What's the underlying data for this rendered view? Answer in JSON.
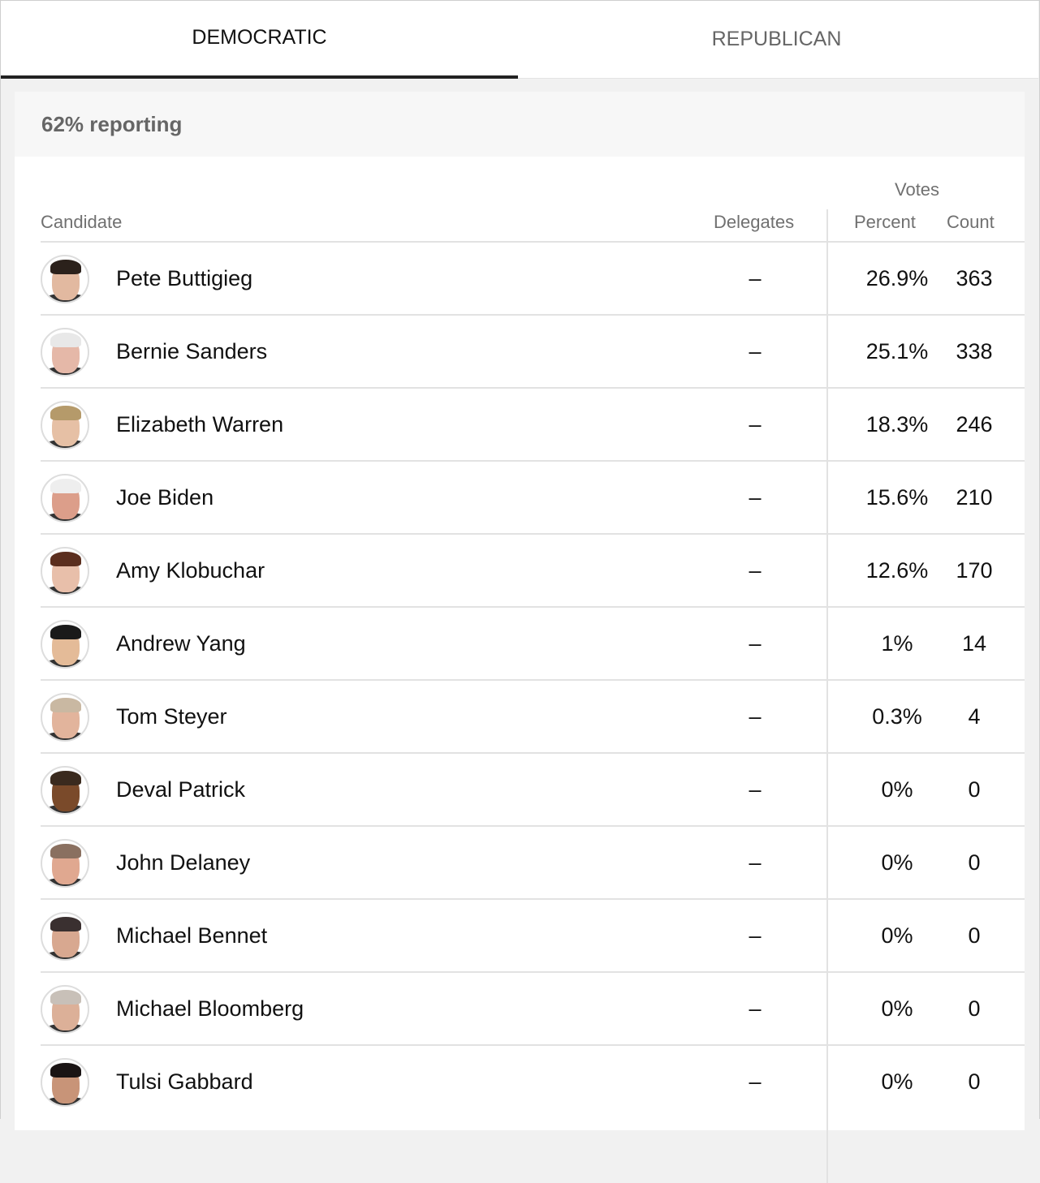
{
  "tabs": [
    {
      "label": "DEMOCRATIC",
      "active": true
    },
    {
      "label": "REPUBLICAN",
      "active": false
    }
  ],
  "reporting": "62% reporting",
  "headers": {
    "votes": "Votes",
    "candidate": "Candidate",
    "delegates": "Delegates",
    "percent": "Percent",
    "count": "Count"
  },
  "rows": [
    {
      "name": "Pete Buttigieg",
      "delegates": "–",
      "percent": "26.9%",
      "count": "363",
      "skin": "#e2b9a0",
      "hair": "#2b211b"
    },
    {
      "name": "Bernie Sanders",
      "delegates": "–",
      "percent": "25.1%",
      "count": "338",
      "skin": "#e5b8a8",
      "hair": "#e8e8e8"
    },
    {
      "name": "Elizabeth Warren",
      "delegates": "–",
      "percent": "18.3%",
      "count": "246",
      "skin": "#e6c0a5",
      "hair": "#b59a6a"
    },
    {
      "name": "Joe Biden",
      "delegates": "–",
      "percent": "15.6%",
      "count": "210",
      "skin": "#dc9e8a",
      "hair": "#eeeeee"
    },
    {
      "name": "Amy Klobuchar",
      "delegates": "–",
      "percent": "12.6%",
      "count": "170",
      "skin": "#e8bfaa",
      "hair": "#5b2e1e"
    },
    {
      "name": "Andrew Yang",
      "delegates": "–",
      "percent": "1%",
      "count": "14",
      "skin": "#e4bb98",
      "hair": "#1a1a1a"
    },
    {
      "name": "Tom Steyer",
      "delegates": "–",
      "percent": "0.3%",
      "count": "4",
      "skin": "#e2b49c",
      "hair": "#c9b8a2"
    },
    {
      "name": "Deval Patrick",
      "delegates": "–",
      "percent": "0%",
      "count": "0",
      "skin": "#7a4a2a",
      "hair": "#3a2a1e"
    },
    {
      "name": "John Delaney",
      "delegates": "–",
      "percent": "0%",
      "count": "0",
      "skin": "#e0a890",
      "hair": "#8a7060"
    },
    {
      "name": "Michael Bennet",
      "delegates": "–",
      "percent": "0%",
      "count": "0",
      "skin": "#d8a890",
      "hair": "#3a3030"
    },
    {
      "name": "Michael Bloomberg",
      "delegates": "–",
      "percent": "0%",
      "count": "0",
      "skin": "#dcb098",
      "hair": "#c8c0b8"
    },
    {
      "name": "Tulsi Gabbard",
      "delegates": "–",
      "percent": "0%",
      "count": "0",
      "skin": "#c89478",
      "hair": "#1a1414"
    }
  ]
}
